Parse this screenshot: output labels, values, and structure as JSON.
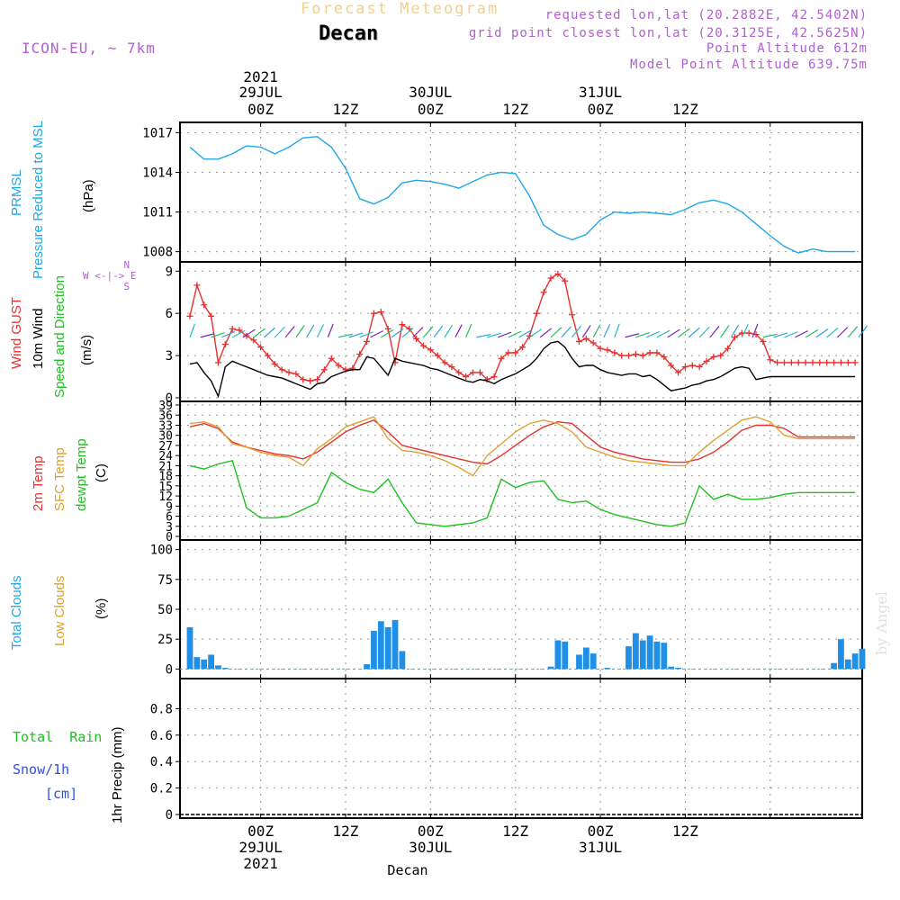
{
  "header": {
    "title": "Forecast Meteogram",
    "location": "Decan",
    "model": "ICON-EU, ~ 7km",
    "requested": "requested lon,lat (20.2882E, 42.5402N)",
    "grid_point": "grid point closest lon,lat (20.3125E, 42.5625N)",
    "point_altitude": "Point Altitude 612m",
    "model_altitude": "Model Point Altitude 639.75m",
    "watermark": "by Angel"
  },
  "time_axis": {
    "year": "2021",
    "day_labels": [
      "29JUL",
      "30JUL",
      "31JUL"
    ],
    "top_ticks": [
      "00Z",
      "12Z",
      "00Z",
      "12Z",
      "00Z",
      "12Z"
    ],
    "footer": "Decan"
  },
  "panel_labels": {
    "pressure": [
      "PRMSL",
      "Pressure Reduced to MSL",
      "(hPa)"
    ],
    "wind": [
      "Wind GUST",
      "10m Wind",
      "Speed and Direction",
      "(m/s)"
    ],
    "compass": "N\nW <-|-> E\nS",
    "temp": [
      "2m Temp",
      "SFC Temp",
      "dewpt Temp",
      "(C)"
    ],
    "clouds": [
      "Total Clouds",
      "Low Clouds",
      "(%)"
    ],
    "precip_left": [
      "Total  Rain",
      "Snow/1h",
      "[cm]"
    ],
    "precip_axis": "1hr Precip (mm)"
  },
  "colors": {
    "pressure": "#1fa8e8",
    "gust": "#e83030",
    "wind": "#000000",
    "t2m": "#e83030",
    "tsfc": "#e0a030",
    "dewpt": "#20c020",
    "clouds": "#1f8fe8",
    "rain": "#20c020",
    "snow": "#3050e0",
    "purple": "#b060d0"
  },
  "chart_data": [
    {
      "type": "line",
      "id": "pressure",
      "ylabel": "(hPa)",
      "ylim": [
        1007.5,
        1017.5
      ],
      "yticks": [
        1008,
        1011,
        1014,
        1017
      ],
      "x_hours_from_start": [
        0,
        2,
        4,
        6,
        8,
        10,
        12,
        14,
        16,
        18,
        20,
        22,
        24,
        26,
        28,
        30,
        32,
        34,
        36,
        38,
        40,
        42,
        44,
        46,
        48,
        50,
        52,
        54,
        56,
        58,
        60,
        62,
        64,
        66,
        68,
        70,
        72,
        74,
        76,
        78,
        80,
        82,
        84,
        86,
        88,
        90,
        92,
        94
      ],
      "series": [
        {
          "name": "PRMSL",
          "values": [
            1015.9,
            1015.0,
            1015.0,
            1015.4,
            1016.0,
            1015.9,
            1015.4,
            1015.9,
            1016.6,
            1016.7,
            1015.9,
            1014.3,
            1012.0,
            1011.6,
            1012.1,
            1013.2,
            1013.4,
            1013.3,
            1013.1,
            1012.8,
            1013.3,
            1013.8,
            1014.0,
            1013.9,
            1012.2,
            1010.0,
            1009.3,
            1008.9,
            1009.3,
            1010.4,
            1011.0,
            1010.9,
            1011.0,
            1010.9,
            1010.8,
            1011.2,
            1011.7,
            1011.9,
            1011.6,
            1011.0,
            1010.1,
            1009.2,
            1008.4,
            1007.9,
            1008.2,
            1008.0,
            1008.0,
            1008.0
          ]
        }
      ]
    },
    {
      "type": "line",
      "id": "wind",
      "ylabel": "(m/s)",
      "ylim": [
        0,
        9.4
      ],
      "yticks": [
        0,
        3,
        6,
        9
      ],
      "x_hours_from_start": [
        0,
        1,
        2,
        3,
        4,
        5,
        6,
        7,
        8,
        9,
        10,
        11,
        12,
        13,
        14,
        15,
        16,
        17,
        18,
        19,
        20,
        21,
        22,
        23,
        24,
        25,
        26,
        27,
        28,
        29,
        30,
        31,
        32,
        33,
        34,
        35,
        36,
        37,
        38,
        39,
        40,
        41,
        42,
        43,
        44,
        45,
        46,
        47,
        48,
        49,
        50,
        51,
        52,
        53,
        54,
        55,
        56,
        57,
        58,
        59,
        60,
        61,
        62,
        63,
        64,
        65,
        66,
        67,
        68,
        69,
        70,
        71,
        72,
        73,
        74,
        75,
        76,
        77,
        78,
        79,
        80,
        81,
        82,
        83,
        84,
        85,
        86,
        87,
        88,
        89,
        90,
        91,
        92,
        93,
        94
      ],
      "series": [
        {
          "name": "Wind GUST",
          "values": [
            5.8,
            8.0,
            6.6,
            5.8,
            2.5,
            3.8,
            4.9,
            4.8,
            4.4,
            4.1,
            3.6,
            3.0,
            2.4,
            2.0,
            1.8,
            1.7,
            1.3,
            1.2,
            1.3,
            2.0,
            2.8,
            2.3,
            2.0,
            2.1,
            3.1,
            4.0,
            6.0,
            6.1,
            4.9,
            2.5,
            5.2,
            4.9,
            4.2,
            3.7,
            3.4,
            3.0,
            2.5,
            2.2,
            1.8,
            1.5,
            1.8,
            1.8,
            1.3,
            1.5,
            2.8,
            3.2,
            3.2,
            3.6,
            4.4,
            6.0,
            7.5,
            8.5,
            8.8,
            8.3,
            5.9,
            4.0,
            4.2,
            3.9,
            3.5,
            3.4,
            3.2,
            3.0,
            3.0,
            3.1,
            3.0,
            3.2,
            3.2,
            2.9,
            2.3,
            1.8,
            2.2,
            2.3,
            2.2,
            2.6,
            2.9,
            3.0,
            3.5,
            4.3,
            4.6,
            4.6,
            4.5,
            4.0,
            2.7,
            2.5,
            2.5,
            2.5,
            2.5,
            2.5,
            2.5,
            2.5,
            2.5,
            2.5,
            2.5,
            2.5,
            2.5
          ]
        },
        {
          "name": "10m Wind",
          "values": [
            2.4,
            2.5,
            1.8,
            1.2,
            0.1,
            2.2,
            2.6,
            2.4,
            2.2,
            2.0,
            1.8,
            1.6,
            1.5,
            1.4,
            1.2,
            1.0,
            0.8,
            0.6,
            1.0,
            1.1,
            1.5,
            1.7,
            1.9,
            2.0,
            2.0,
            2.9,
            2.8,
            2.2,
            1.6,
            2.8,
            2.6,
            2.5,
            2.4,
            2.3,
            2.1,
            2.0,
            1.8,
            1.6,
            1.4,
            1.2,
            1.1,
            1.3,
            1.2,
            1.0,
            1.3,
            1.5,
            1.7,
            2.0,
            2.3,
            2.8,
            3.5,
            3.9,
            4.0,
            3.6,
            2.8,
            2.2,
            2.3,
            2.3,
            2.0,
            1.8,
            1.7,
            1.6,
            1.7,
            1.7,
            1.5,
            1.6,
            1.3,
            0.9,
            0.5,
            0.6,
            0.7,
            0.9,
            1.0,
            1.2,
            1.3,
            1.5,
            1.8,
            2.1,
            2.2,
            2.1,
            1.3,
            1.4,
            1.5,
            1.5,
            1.5,
            1.5,
            1.5,
            1.5,
            1.5,
            1.5,
            1.5,
            1.5,
            1.5,
            1.5,
            1.5
          ]
        }
      ]
    },
    {
      "type": "line",
      "id": "temperature",
      "ylabel": "(C)",
      "ylim": [
        0,
        39
      ],
      "yticks": [
        0,
        3,
        6,
        9,
        12,
        15,
        18,
        21,
        24,
        27,
        30,
        33,
        36,
        39
      ],
      "x_hours_from_start": [
        0,
        2,
        4,
        6,
        8,
        10,
        12,
        14,
        16,
        18,
        20,
        22,
        24,
        26,
        28,
        30,
        32,
        34,
        36,
        38,
        40,
        42,
        44,
        46,
        48,
        50,
        52,
        54,
        56,
        58,
        60,
        62,
        64,
        66,
        68,
        70,
        72,
        74,
        76,
        78,
        80,
        82,
        84,
        86,
        88,
        90,
        92,
        94
      ],
      "series": [
        {
          "name": "2m Temp",
          "values": [
            32.5,
            33.5,
            32.0,
            28.0,
            26.5,
            25.5,
            24.5,
            24.0,
            23.0,
            25.0,
            28.0,
            31.0,
            33.0,
            34.5,
            31.0,
            27.0,
            26.0,
            25.0,
            24.0,
            23.0,
            22.0,
            21.5,
            24.0,
            27.0,
            30.0,
            32.5,
            34.0,
            33.5,
            30.0,
            26.5,
            25.0,
            24.0,
            23.0,
            22.5,
            22.0,
            22.0,
            23.0,
            25.0,
            28.0,
            31.5,
            33.0,
            33.0,
            32.0,
            29.5,
            29.5,
            29.5,
            29.5,
            29.5
          ]
        },
        {
          "name": "SFC Temp",
          "values": [
            33.5,
            34.0,
            32.5,
            27.5,
            26.5,
            25.0,
            24.0,
            23.5,
            21.0,
            26.0,
            29.0,
            32.5,
            34.0,
            35.5,
            29.0,
            25.5,
            25.0,
            24.0,
            22.5,
            20.5,
            18.0,
            24.0,
            27.5,
            31.0,
            33.5,
            34.5,
            33.5,
            31.0,
            26.5,
            25.0,
            23.5,
            22.5,
            22.0,
            21.5,
            21.0,
            21.0,
            25.0,
            28.5,
            31.5,
            34.5,
            35.5,
            34.0,
            30.0,
            29.0,
            29.0,
            29.0,
            29.0,
            29.0
          ]
        },
        {
          "name": "dewpt Temp",
          "values": [
            21.0,
            20.0,
            21.5,
            22.5,
            8.5,
            5.5,
            5.5,
            6.0,
            8.0,
            10.0,
            19.0,
            16.0,
            14.0,
            13.0,
            17.0,
            10.0,
            4.0,
            3.5,
            3.0,
            3.5,
            4.0,
            5.5,
            17.0,
            14.5,
            16.0,
            16.5,
            11.0,
            10.0,
            10.5,
            8.0,
            6.5,
            5.5,
            4.5,
            3.5,
            3.0,
            4.0,
            15.0,
            11.0,
            12.5,
            11.0,
            11.0,
            11.5,
            12.5,
            13.0,
            13.0,
            13.0,
            13.0,
            13.0
          ]
        }
      ]
    },
    {
      "type": "bar",
      "id": "clouds",
      "ylabel": "(%)",
      "ylim": [
        -5,
        105
      ],
      "yticks": [
        0,
        25,
        50,
        75,
        100
      ],
      "x_hours_from_start": [
        0,
        1,
        2,
        3,
        4,
        5,
        6,
        7,
        8,
        9,
        10,
        11,
        12,
        13,
        14,
        15,
        16,
        17,
        18,
        19,
        20,
        21,
        22,
        23,
        24,
        25,
        26,
        27,
        28,
        29,
        30,
        31,
        32,
        33,
        34,
        35,
        36,
        37,
        38,
        39,
        40,
        41,
        42,
        43,
        44,
        45,
        46,
        47,
        48,
        49,
        50,
        51,
        52,
        53,
        54,
        55,
        56,
        57,
        58,
        59,
        60,
        61,
        62,
        63,
        64,
        65,
        66,
        67,
        68,
        69,
        70,
        71,
        72,
        73,
        74,
        75,
        76,
        77,
        78,
        79,
        80,
        81,
        82,
        83,
        84,
        85,
        86,
        87,
        88,
        89,
        90,
        91,
        92,
        93,
        94,
        95
      ],
      "series": [
        {
          "name": "Total Clouds",
          "values": [
            35,
            10,
            8,
            12,
            3,
            1,
            0,
            0,
            0,
            0,
            0,
            0,
            0,
            0,
            0,
            0,
            0,
            0,
            0,
            0,
            0,
            0,
            0,
            0,
            0,
            4,
            32,
            40,
            35,
            41,
            15,
            0,
            0,
            0,
            0,
            0,
            0,
            0,
            0,
            0,
            0,
            0,
            0,
            0,
            0,
            0,
            0,
            0,
            0,
            0,
            0,
            2,
            24,
            23,
            0,
            12,
            18,
            13,
            0,
            1,
            0,
            0,
            19,
            30,
            24,
            28,
            23,
            22,
            2,
            1,
            0,
            0,
            0,
            0,
            0,
            0,
            0,
            0,
            0,
            0,
            0,
            0,
            0,
            0,
            0,
            0,
            0,
            0,
            0,
            0,
            0,
            5,
            25,
            8,
            13,
            17
          ]
        }
      ]
    },
    {
      "type": "line",
      "id": "precip",
      "ylabel": "1hr Precip (mm)",
      "ylim": [
        0,
        1
      ],
      "yticks": [
        0,
        0.2,
        0.4,
        0.6,
        0.8
      ],
      "series": [
        {
          "name": "Total Rain",
          "values": [
            0,
            0
          ]
        },
        {
          "name": "Snow/1h",
          "values": [
            0,
            0
          ]
        }
      ]
    }
  ]
}
